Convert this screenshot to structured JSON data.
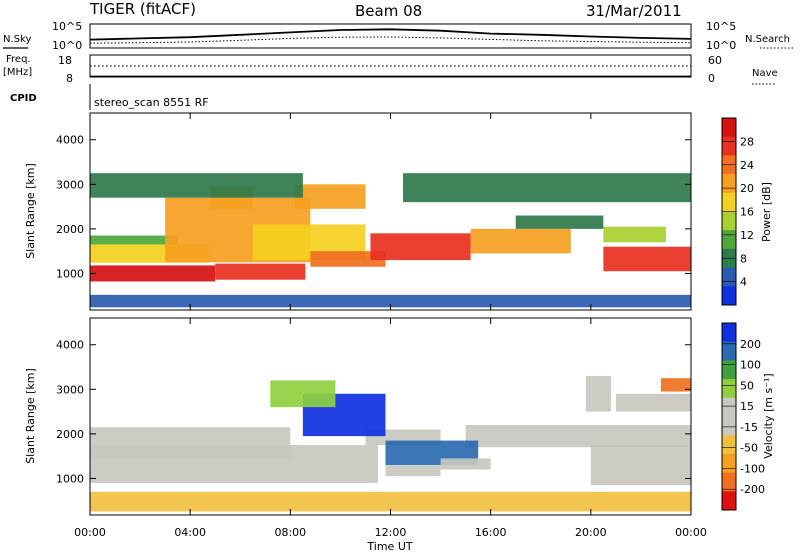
{
  "header": {
    "radar": "TIGER (fitACF)",
    "beam": "Beam 08",
    "date": "31/Mar/2011"
  },
  "top_panels": {
    "nsky_label": "N.Sky",
    "nsky_ticks": [
      "10^5",
      "10^0"
    ],
    "nsearch_label": "N.Search",
    "nsearch_ticks": [
      "10^5",
      "10^0"
    ],
    "freq_label_1": "Freq.",
    "freq_label_2": "[MHz]",
    "freq_ticks": [
      "18",
      "8"
    ],
    "nave_label": "Nave",
    "nave_ticks": [
      "60",
      "0"
    ],
    "cpid_label": "CPID",
    "cpid_value": "stereo_scan 8551 RF"
  },
  "panels": {
    "power": {
      "ylabel": "Slant Range [km]",
      "cbar_label": "Power [dB]"
    },
    "velocity": {
      "ylabel": "Slant Range [km]",
      "cbar_label": "Velocity [m s⁻¹]"
    }
  },
  "xaxis": {
    "label": "Time UT"
  },
  "chart_data": [
    {
      "type": "heatmap",
      "name": "Power",
      "x_ticks": [
        "00:00",
        "04:00",
        "08:00",
        "12:00",
        "16:00",
        "20:00",
        "00:00"
      ],
      "x_hours": [
        0,
        4,
        8,
        12,
        16,
        20,
        24
      ],
      "xlim": [
        0,
        24
      ],
      "y_ticks": [
        1000,
        2000,
        3000,
        4000
      ],
      "ylim": [
        180,
        4600
      ],
      "colorbar": {
        "ticks": [
          "28",
          "24",
          "20",
          "16",
          "12",
          "8",
          "4"
        ],
        "range": [
          0,
          32
        ],
        "colors": [
          "#1030e0",
          "#2a5ab0",
          "#2f7a4a",
          "#4fa63a",
          "#a8d030",
          "#f4d020",
          "#f5a020",
          "#f07020",
          "#e83020",
          "#d41010"
        ]
      },
      "bands": [
        {
          "x": [
            0,
            5
          ],
          "y": [
            820,
            1180
          ],
          "value": 30
        },
        {
          "x": [
            5,
            8.6
          ],
          "y": [
            860,
            1220
          ],
          "value": 26
        },
        {
          "x": [
            0,
            4.8
          ],
          "y": [
            1240,
            1650
          ],
          "value": 18
        },
        {
          "x": [
            0,
            3.5
          ],
          "y": [
            1650,
            1850
          ],
          "value": 12
        },
        {
          "x": [
            3,
            8.8
          ],
          "y": [
            1250,
            2700
          ],
          "value": 21
        },
        {
          "x": [
            4.8,
            6.5
          ],
          "y": [
            2450,
            2950
          ],
          "value": 22
        },
        {
          "x": [
            6.5,
            11
          ],
          "y": [
            1300,
            2100
          ],
          "value": 17
        },
        {
          "x": [
            8.2,
            11
          ],
          "y": [
            2450,
            3000
          ],
          "value": 20
        },
        {
          "x": [
            8.8,
            11.8
          ],
          "y": [
            1150,
            1500
          ],
          "value": 24
        },
        {
          "x": [
            11.2,
            15.2
          ],
          "y": [
            1300,
            1900
          ],
          "value": 26
        },
        {
          "x": [
            15.2,
            19.2
          ],
          "y": [
            1450,
            2000
          ],
          "value": 22
        },
        {
          "x": [
            17,
            20.5
          ],
          "y": [
            2000,
            2300
          ],
          "value": 9
        },
        {
          "x": [
            20.5,
            24
          ],
          "y": [
            1050,
            1600
          ],
          "value": 28
        },
        {
          "x": [
            20.5,
            23
          ],
          "y": [
            1700,
            2050
          ],
          "value": 15
        },
        {
          "x": [
            0,
            8.5
          ],
          "y": [
            2700,
            3250
          ],
          "value": 7
        },
        {
          "x": [
            12.5,
            24
          ],
          "y": [
            2600,
            3250
          ],
          "value": 8
        },
        {
          "x": [
            0,
            24
          ],
          "y": [
            240,
            520
          ],
          "value": 6
        }
      ]
    },
    {
      "type": "heatmap",
      "name": "Velocity",
      "x_ticks": [
        "00:00",
        "04:00",
        "08:00",
        "12:00",
        "16:00",
        "20:00",
        "00:00"
      ],
      "x_hours": [
        0,
        4,
        8,
        12,
        16,
        20,
        24
      ],
      "xlim": [
        0,
        24
      ],
      "y_ticks": [
        1000,
        2000,
        3000,
        4000
      ],
      "ylim": [
        180,
        4600
      ],
      "colorbar": {
        "ticks": [
          "200",
          "100",
          "50",
          "15",
          "-15",
          "-50",
          "-100",
          "-200"
        ],
        "range": [
          -250,
          250
        ],
        "colors": [
          "#e01010",
          "#f07020",
          "#f5a020",
          "#f0c040",
          "#c8c8c0",
          "#c8c8c0",
          "#90d040",
          "#40a040",
          "#2a6ab0",
          "#1030e0"
        ]
      },
      "bands": [
        {
          "x": [
            0,
            11.5
          ],
          "y": [
            900,
            1750
          ],
          "value": 0
        },
        {
          "x": [
            0,
            8
          ],
          "y": [
            1450,
            2150
          ],
          "value": -30
        },
        {
          "x": [
            11,
            14
          ],
          "y": [
            1750,
            2100
          ],
          "value": -10
        },
        {
          "x": [
            15,
            24
          ],
          "y": [
            1700,
            2200
          ],
          "value": 0
        },
        {
          "x": [
            20,
            24
          ],
          "y": [
            850,
            1750
          ],
          "value": 0
        },
        {
          "x": [
            8.5,
            11.8
          ],
          "y": [
            1950,
            2900
          ],
          "value": 210
        },
        {
          "x": [
            7.2,
            9.8
          ],
          "y": [
            2600,
            3200
          ],
          "value": 80
        },
        {
          "x": [
            11.8,
            15.5
          ],
          "y": [
            1300,
            1850
          ],
          "value": 150
        },
        {
          "x": [
            11.8,
            14
          ],
          "y": [
            1050,
            1300
          ],
          "value": 40
        },
        {
          "x": [
            14,
            16
          ],
          "y": [
            1200,
            1450
          ],
          "value": 30
        },
        {
          "x": [
            19.8,
            20.8
          ],
          "y": [
            2500,
            3300
          ],
          "value": 45
        },
        {
          "x": [
            21,
            24
          ],
          "y": [
            2500,
            2900
          ],
          "value": 0
        },
        {
          "x": [
            22.8,
            24
          ],
          "y": [
            2950,
            3250
          ],
          "value": -180
        },
        {
          "x": [
            0,
            24
          ],
          "y": [
            260,
            700
          ],
          "value": -60
        }
      ]
    },
    {
      "type": "line",
      "name": "N.Sky / N.Search",
      "series": [
        {
          "name": "N.Sky",
          "x": [
            0,
            2,
            4,
            6,
            8,
            10,
            12,
            14,
            16,
            18,
            20,
            22,
            24
          ],
          "values": [
            0.35,
            0.4,
            0.45,
            0.55,
            0.65,
            0.75,
            0.78,
            0.72,
            0.6,
            0.55,
            0.48,
            0.42,
            0.38
          ]
        },
        {
          "name": "N.Search",
          "x": [
            0,
            2,
            4,
            6,
            8,
            10,
            12,
            14,
            16,
            18,
            20,
            22,
            24
          ],
          "values": [
            0.2,
            0.22,
            0.25,
            0.32,
            0.4,
            0.45,
            0.46,
            0.42,
            0.36,
            0.3,
            0.27,
            0.24,
            0.22
          ]
        }
      ]
    },
    {
      "type": "line",
      "name": "Freq. / Nave",
      "series": [
        {
          "name": "Freq.",
          "x": [
            0,
            24
          ],
          "values": [
            13,
            13
          ]
        },
        {
          "name": "Nave",
          "x": [
            0,
            24
          ],
          "values": [
            2,
            2
          ]
        }
      ]
    }
  ]
}
